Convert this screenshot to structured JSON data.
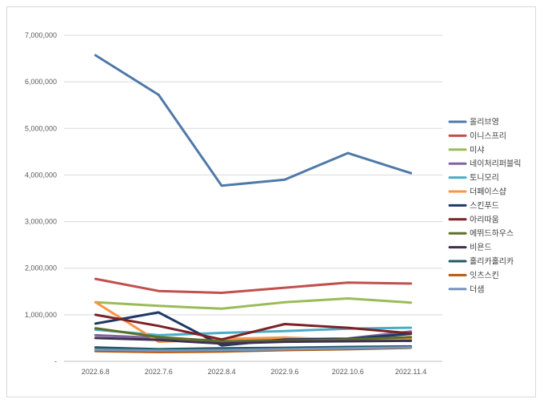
{
  "chart_data": {
    "type": "line",
    "title": "",
    "xlabel": "",
    "ylabel": "",
    "categories": [
      "2022.6.8",
      "2022.7.6",
      "2022.8.4",
      "2022.9.6",
      "2022.10.6",
      "2022.11.4"
    ],
    "ylim": [
      0,
      7000000
    ],
    "yticks": [
      {
        "value": 0,
        "label": "-"
      },
      {
        "value": 1000000,
        "label": "1,000,000"
      },
      {
        "value": 2000000,
        "label": "2,000,000"
      },
      {
        "value": 3000000,
        "label": "3,000,000"
      },
      {
        "value": 4000000,
        "label": "4,000,000"
      },
      {
        "value": 5000000,
        "label": "5,000,000"
      },
      {
        "value": 6000000,
        "label": "6,000,000"
      },
      {
        "value": 7000000,
        "label": "7,000,000"
      }
    ],
    "grid": true,
    "legend_position": "right",
    "series": [
      {
        "name": "올리브영",
        "color": "#4f79a8",
        "values": [
          6570000,
          5720000,
          3770000,
          3900000,
          4470000,
          4040000
        ]
      },
      {
        "name": "이니스프리",
        "color": "#c0504d",
        "values": [
          1770000,
          1510000,
          1470000,
          1580000,
          1690000,
          1670000
        ]
      },
      {
        "name": "미샤",
        "color": "#9bbb59",
        "values": [
          1270000,
          1190000,
          1130000,
          1270000,
          1350000,
          1260000
        ]
      },
      {
        "name": "네이처리퍼블릭",
        "color": "#8064a2",
        "values": [
          560000,
          500000,
          420000,
          480000,
          490000,
          640000
        ]
      },
      {
        "name": "토니모리",
        "color": "#4bacc6",
        "values": [
          680000,
          560000,
          610000,
          650000,
          700000,
          720000
        ]
      },
      {
        "name": "더페이스샵",
        "color": "#f79646",
        "values": [
          1270000,
          420000,
          480000,
          510000,
          460000,
          480000
        ]
      },
      {
        "name": "스킨푸드",
        "color": "#1f3864",
        "values": [
          810000,
          1050000,
          340000,
          470000,
          480000,
          590000
        ]
      },
      {
        "name": "아리따움",
        "color": "#7b2226",
        "values": [
          1000000,
          760000,
          470000,
          800000,
          720000,
          600000
        ]
      },
      {
        "name": "에뛰드하우스",
        "color": "#5b7027",
        "values": [
          710000,
          520000,
          430000,
          440000,
          470000,
          520000
        ]
      },
      {
        "name": "비욘드",
        "color": "#3f3151",
        "values": [
          500000,
          460000,
          380000,
          420000,
          430000,
          440000
        ]
      },
      {
        "name": "홀리카홀리카",
        "color": "#215968",
        "values": [
          300000,
          260000,
          280000,
          290000,
          310000,
          320000
        ]
      },
      {
        "name": "잇츠스킨",
        "color": "#b65708",
        "values": [
          220000,
          200000,
          210000,
          240000,
          260000,
          290000
        ]
      },
      {
        "name": "더샘",
        "color": "#7794bd",
        "values": [
          250000,
          230000,
          240000,
          260000,
          280000,
          300000
        ]
      }
    ]
  }
}
